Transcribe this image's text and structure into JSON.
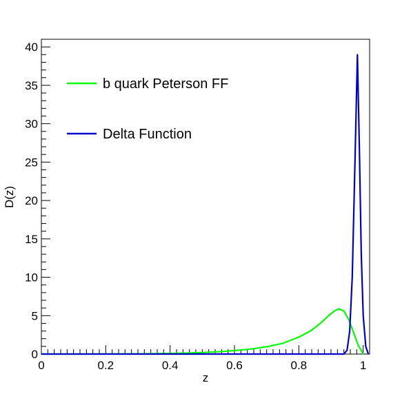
{
  "chart_data": {
    "type": "line",
    "title": "",
    "xlabel": "z",
    "ylabel": "D(z)",
    "xlim": [
      0,
      1.02
    ],
    "ylim": [
      0,
      41
    ],
    "x_ticks": [
      0,
      0.2,
      0.4,
      0.6,
      0.8,
      1
    ],
    "x_tick_labels": [
      "0",
      "0.2",
      "0.4",
      "0.6",
      "0.8",
      "1"
    ],
    "y_ticks": [
      0,
      5,
      10,
      15,
      20,
      25,
      30,
      35,
      40
    ],
    "y_tick_labels": [
      "0",
      "5",
      "10",
      "15",
      "20",
      "25",
      "30",
      "35",
      "40"
    ],
    "grid": false,
    "legend_position": "top-left",
    "series": [
      {
        "name": "b quark Peterson FF",
        "color": "#00ff00",
        "x": [
          0,
          0.1,
          0.2,
          0.3,
          0.4,
          0.45,
          0.5,
          0.55,
          0.6,
          0.65,
          0.7,
          0.75,
          0.8,
          0.84,
          0.87,
          0.89,
          0.91,
          0.925,
          0.94,
          0.955,
          0.97,
          0.985,
          1.0
        ],
        "y": [
          0,
          0,
          0.01,
          0.03,
          0.08,
          0.13,
          0.2,
          0.3,
          0.45,
          0.65,
          0.95,
          1.4,
          2.2,
          3.1,
          4.1,
          4.9,
          5.6,
          5.9,
          5.6,
          4.5,
          2.8,
          1.1,
          0
        ]
      },
      {
        "name": "Delta Function",
        "color": "#0000cc",
        "x": [
          0,
          0.9,
          0.94,
          0.95,
          0.958,
          0.966,
          0.974,
          0.982,
          0.988,
          0.994,
          1.0,
          1.008,
          1.016
        ],
        "y": [
          0,
          0,
          0,
          0.5,
          3,
          10,
          24,
          39,
          27,
          13,
          5,
          1,
          0
        ]
      }
    ]
  }
}
